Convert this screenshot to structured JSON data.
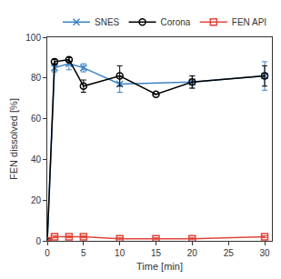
{
  "chart_data": {
    "type": "line",
    "x_label": "Time [min]",
    "y_label": "FEN dissolved [%]",
    "xlim": [
      0,
      31
    ],
    "xticks": [
      0,
      5,
      10,
      15,
      20,
      25,
      30
    ],
    "ylim": [
      0,
      100
    ],
    "yticks": [
      0,
      20,
      40,
      60,
      80,
      100
    ],
    "grid": false,
    "legend": "upper right",
    "series": [
      {
        "name": "SNES",
        "color": "#3b82c4",
        "marker": "x-thin-open",
        "line_style": "solid",
        "x": [
          0,
          1,
          3,
          5,
          10,
          20,
          30
        ],
        "values": [
          0,
          85,
          87,
          85,
          77,
          78,
          81
        ],
        "error": [
          0,
          2,
          3,
          2,
          4,
          3,
          7
        ]
      },
      {
        "name": "Corona",
        "color": "#000000",
        "marker": "circle-open",
        "line_style": "solid",
        "x": [
          0,
          1,
          3,
          5,
          10,
          15,
          20,
          30
        ],
        "values": [
          0,
          88,
          89,
          76,
          81,
          72,
          78,
          81
        ],
        "error": [
          0,
          1,
          1,
          3,
          5,
          0,
          3,
          5
        ]
      },
      {
        "name": "FEN API",
        "color": "#e0453a",
        "marker": "square-open",
        "line_style": "solid",
        "x": [
          0,
          1,
          3,
          5,
          10,
          15,
          20,
          30
        ],
        "values": [
          0,
          2,
          2,
          2,
          1,
          1,
          1,
          2
        ],
        "error": [
          0,
          0.5,
          0.5,
          0.5,
          0.5,
          0.5,
          0.5,
          0.5
        ]
      }
    ]
  }
}
